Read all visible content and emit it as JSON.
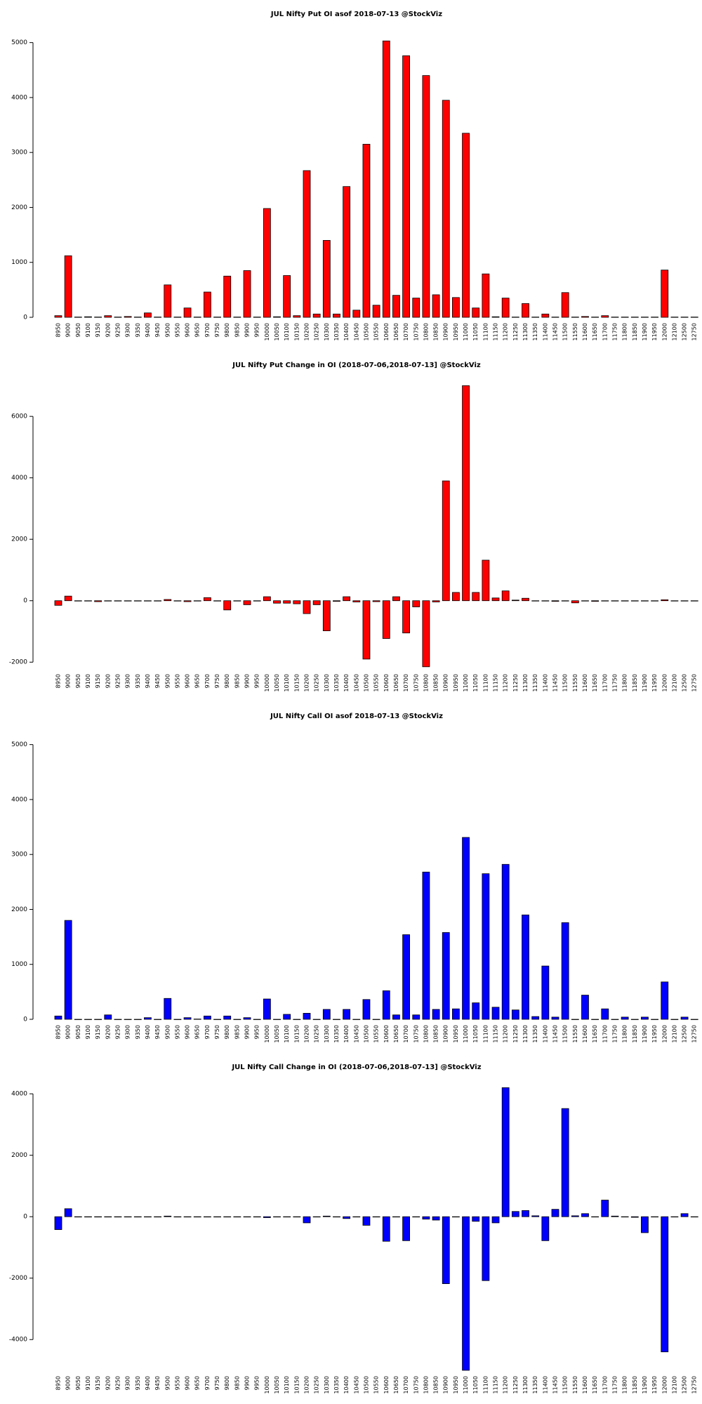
{
  "chart_data": [
    {
      "type": "bar",
      "title": "JUL Nifty Put OI asof 2018-07-13 @StockViz",
      "categories": [
        "8950",
        "9000",
        "9050",
        "9100",
        "9150",
        "9200",
        "9250",
        "9300",
        "9350",
        "9400",
        "9450",
        "9500",
        "9550",
        "9600",
        "9650",
        "9700",
        "9750",
        "9800",
        "9850",
        "9900",
        "9950",
        "10000",
        "10050",
        "10100",
        "10150",
        "10200",
        "10250",
        "10300",
        "10350",
        "10400",
        "10450",
        "10500",
        "10550",
        "10600",
        "10650",
        "10700",
        "10750",
        "10800",
        "10850",
        "10900",
        "10950",
        "11000",
        "11050",
        "11100",
        "11150",
        "11200",
        "11250",
        "11300",
        "11350",
        "11400",
        "11450",
        "11500",
        "11550",
        "11600",
        "11650",
        "11700",
        "11750",
        "11800",
        "11850",
        "11900",
        "11950",
        "12000",
        "12100",
        "12500",
        "12750"
      ],
      "values": [
        30,
        1120,
        5,
        10,
        5,
        30,
        5,
        15,
        5,
        80,
        5,
        590,
        5,
        170,
        5,
        460,
        5,
        750,
        5,
        850,
        5,
        1980,
        10,
        760,
        30,
        2670,
        60,
        1400,
        60,
        2380,
        130,
        3150,
        220,
        5030,
        400,
        4760,
        350,
        4400,
        410,
        3950,
        360,
        3350,
        170,
        790,
        10,
        350,
        5,
        250,
        5,
        60,
        5,
        450,
        5,
        15,
        5,
        30,
        5,
        5,
        5,
        5,
        5,
        860,
        5,
        5,
        5
      ],
      "color": "#ff0000",
      "ylim": [
        0,
        5200
      ],
      "yticks": [
        0,
        1000,
        2000,
        3000,
        4000,
        5000
      ]
    },
    {
      "type": "bar",
      "title": "JUL Nifty Put Change in OI (2018-07-06,2018-07-13] @StockViz",
      "categories": [
        "8950",
        "9000",
        "9050",
        "9100",
        "9150",
        "9200",
        "9250",
        "9300",
        "9350",
        "9400",
        "9450",
        "9500",
        "9550",
        "9600",
        "9650",
        "9700",
        "9750",
        "9800",
        "9850",
        "9900",
        "9950",
        "10000",
        "10050",
        "10100",
        "10150",
        "10200",
        "10250",
        "10300",
        "10350",
        "10400",
        "10450",
        "10500",
        "10550",
        "10600",
        "10650",
        "10700",
        "10750",
        "10800",
        "10850",
        "10900",
        "10950",
        "11000",
        "11050",
        "11100",
        "11150",
        "11200",
        "11250",
        "11300",
        "11350",
        "11400",
        "11450",
        "11500",
        "11550",
        "11600",
        "11650",
        "11700",
        "11750",
        "11800",
        "11850",
        "11900",
        "11950",
        "12000",
        "12100",
        "12500",
        "12750"
      ],
      "values": [
        -150,
        150,
        0,
        0,
        -30,
        0,
        0,
        0,
        0,
        0,
        0,
        40,
        0,
        -30,
        0,
        100,
        0,
        -300,
        0,
        -130,
        0,
        130,
        -80,
        -80,
        -100,
        -420,
        -130,
        -980,
        -20,
        130,
        -40,
        -1900,
        -30,
        -1230,
        130,
        -1050,
        -200,
        -2150,
        -40,
        3900,
        270,
        7000,
        270,
        1320,
        90,
        320,
        20,
        80,
        0,
        0,
        -20,
        0,
        -70,
        0,
        -20,
        0,
        0,
        0,
        0,
        0,
        0,
        30,
        0,
        0,
        0
      ],
      "color": "#ff0000",
      "ylim": [
        -2200,
        7100
      ],
      "yticks": [
        -2000,
        0,
        2000,
        4000,
        6000
      ]
    },
    {
      "type": "bar",
      "title": "JUL Nifty Call OI asof 2018-07-13 @StockViz",
      "categories": [
        "8950",
        "9000",
        "9050",
        "9100",
        "9150",
        "9200",
        "9250",
        "9300",
        "9350",
        "9400",
        "9450",
        "9500",
        "9550",
        "9600",
        "9650",
        "9700",
        "9750",
        "9800",
        "9850",
        "9900",
        "9950",
        "10000",
        "10050",
        "10100",
        "10150",
        "10200",
        "10250",
        "10300",
        "10350",
        "10400",
        "10450",
        "10500",
        "10550",
        "10600",
        "10650",
        "10700",
        "10750",
        "10800",
        "10850",
        "10900",
        "10950",
        "11000",
        "11050",
        "11100",
        "11150",
        "11200",
        "11250",
        "11300",
        "11350",
        "11400",
        "11450",
        "11500",
        "11550",
        "11600",
        "11650",
        "11700",
        "11750",
        "11800",
        "11850",
        "11900",
        "11950",
        "12000",
        "12100",
        "12500",
        "12750"
      ],
      "values": [
        60,
        1800,
        0,
        0,
        0,
        80,
        0,
        0,
        0,
        30,
        0,
        380,
        0,
        30,
        5,
        60,
        0,
        60,
        0,
        30,
        0,
        370,
        0,
        90,
        0,
        110,
        0,
        180,
        0,
        180,
        0,
        360,
        0,
        520,
        80,
        1540,
        80,
        2680,
        180,
        1580,
        190,
        3310,
        300,
        2650,
        220,
        2820,
        170,
        1900,
        50,
        970,
        40,
        1760,
        0,
        440,
        0,
        190,
        0,
        40,
        0,
        40,
        0,
        680,
        0,
        40,
        0
      ],
      "color": "#0000ff",
      "ylim": [
        0,
        5200
      ],
      "yticks": [
        0,
        1000,
        2000,
        3000,
        4000,
        5000
      ]
    },
    {
      "type": "bar",
      "title": "JUL Nifty Call Change in OI (2018-07-06,2018-07-13] @StockViz",
      "categories": [
        "8950",
        "9000",
        "9050",
        "9100",
        "9150",
        "9200",
        "9250",
        "9300",
        "9350",
        "9400",
        "9450",
        "9500",
        "9550",
        "9600",
        "9650",
        "9700",
        "9750",
        "9800",
        "9850",
        "9900",
        "9950",
        "10000",
        "10050",
        "10100",
        "10150",
        "10200",
        "10250",
        "10300",
        "10350",
        "10400",
        "10450",
        "10500",
        "10550",
        "10600",
        "10650",
        "10700",
        "10750",
        "10800",
        "10850",
        "10900",
        "10950",
        "11000",
        "11050",
        "11100",
        "11150",
        "11200",
        "11250",
        "11300",
        "11350",
        "11400",
        "11450",
        "11500",
        "11550",
        "11600",
        "11650",
        "11700",
        "11750",
        "11800",
        "11850",
        "11900",
        "11950",
        "12000",
        "12100",
        "12500",
        "12750"
      ],
      "values": [
        -420,
        260,
        0,
        0,
        0,
        0,
        0,
        0,
        0,
        0,
        0,
        20,
        0,
        0,
        0,
        0,
        0,
        0,
        0,
        0,
        0,
        -30,
        0,
        0,
        0,
        -200,
        0,
        20,
        0,
        -60,
        0,
        -280,
        0,
        -800,
        0,
        -780,
        0,
        -80,
        -110,
        -2180,
        0,
        -5000,
        -150,
        -2080,
        -200,
        4200,
        170,
        200,
        30,
        -780,
        240,
        3520,
        30,
        100,
        0,
        540,
        20,
        0,
        -20,
        -520,
        0,
        -4400,
        0,
        100,
        0
      ],
      "color": "#0000ff",
      "ylim": [
        -5000,
        4300
      ],
      "yticks": [
        -4000,
        -2000,
        0,
        2000,
        4000
      ]
    }
  ]
}
